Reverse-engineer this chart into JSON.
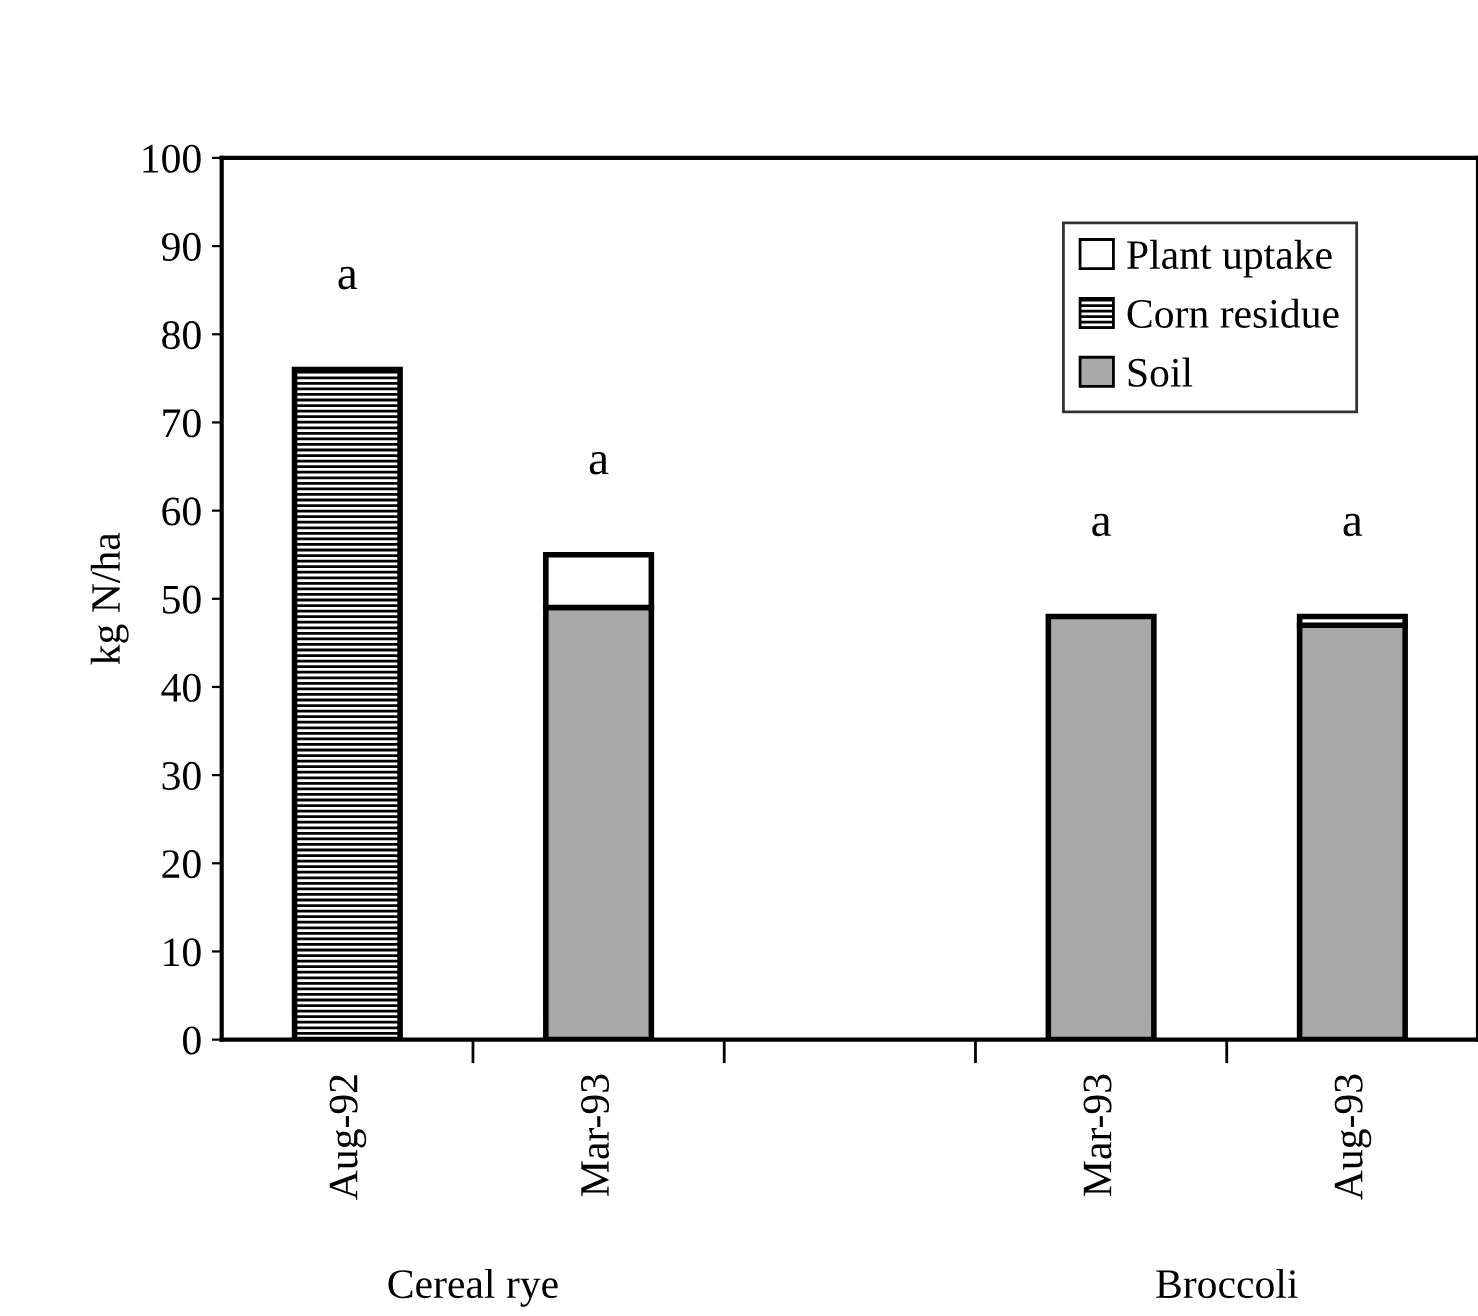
{
  "chart_data": {
    "type": "bar",
    "stacked": true,
    "ylabel": "kg N/ha",
    "categories": [
      "Aug-92",
      "Mar-93",
      null,
      "Mar-93",
      "Aug-93"
    ],
    "series": [
      {
        "name": "Soil",
        "color": "#a8a8a8",
        "values": [
          null,
          49,
          null,
          48,
          47
        ]
      },
      {
        "name": "Corn residue",
        "color": "#000000",
        "values": [
          76,
          null,
          null,
          null,
          null
        ]
      },
      {
        "name": "Plant uptake",
        "color": "#ffffff",
        "values": [
          null,
          6,
          null,
          null,
          1
        ]
      }
    ],
    "ylim": [
      0,
      100
    ],
    "yticks": [
      0,
      10,
      20,
      30,
      40,
      50,
      60,
      70,
      80,
      90,
      100
    ],
    "grid": false,
    "legend": "top right",
    "annotations": [
      "a",
      "a",
      "a",
      "a",
      "Cereal rye",
      "Broccoli"
    ]
  }
}
